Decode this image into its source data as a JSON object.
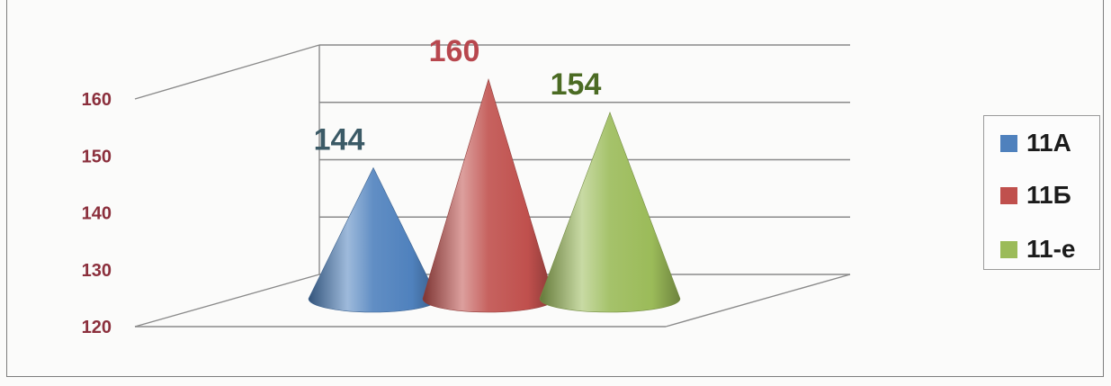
{
  "chart_data": {
    "type": "bar",
    "style": "3d-cone",
    "series": [
      {
        "name": "11А",
        "values": [
          144
        ],
        "color": "#4f81bd",
        "label_color": "#3b5a66"
      },
      {
        "name": "11Б",
        "values": [
          160
        ],
        "color": "#c0504d",
        "label_color": "#b8474e"
      },
      {
        "name": "11-е",
        "values": [
          154
        ],
        "color": "#9bbb59",
        "label_color": "#4b6b23"
      }
    ],
    "ylim": [
      120,
      160
    ],
    "yticks": [
      120,
      130,
      140,
      150,
      160
    ],
    "tick_color": "#8b2f3c",
    "grid": true,
    "legend_position": "right",
    "data_labels": true
  }
}
